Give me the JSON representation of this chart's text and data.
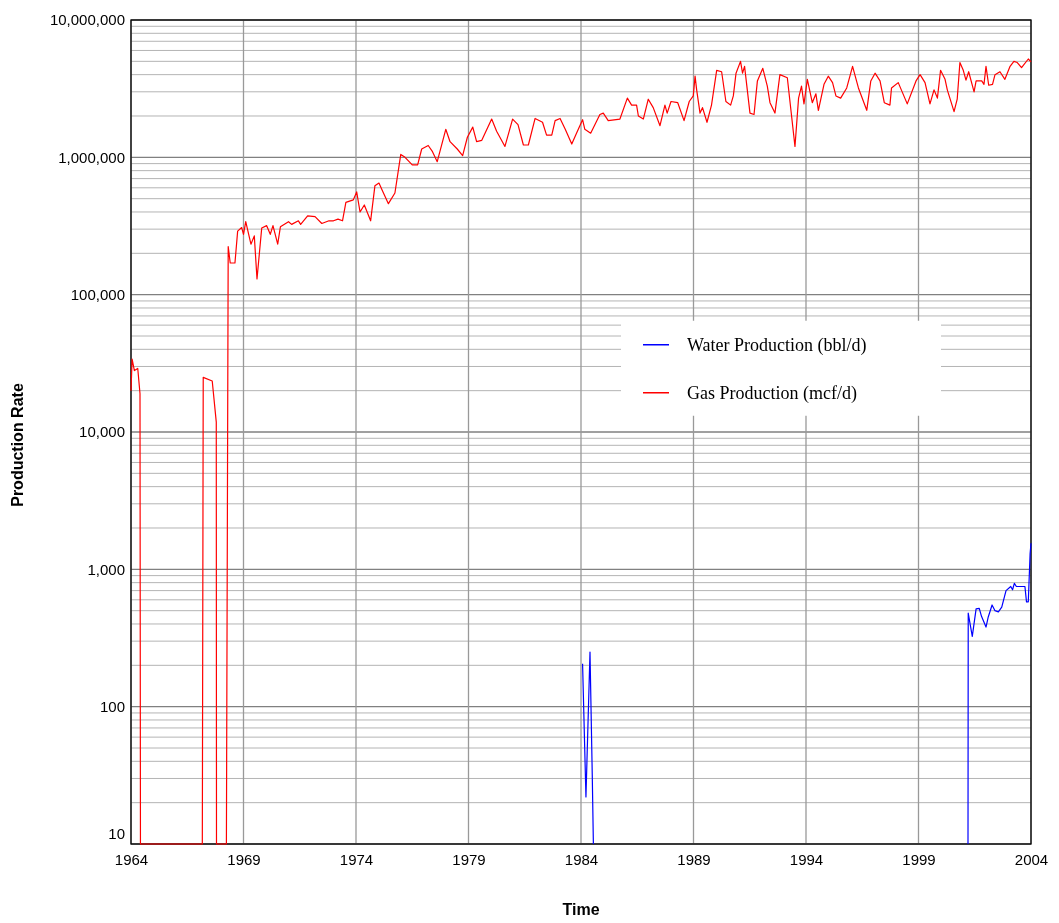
{
  "chart_data": {
    "type": "line",
    "xlabel": "Time",
    "ylabel": "Production Rate",
    "xlim": [
      1964,
      2004
    ],
    "xticks": [
      1964,
      1969,
      1974,
      1979,
      1984,
      1989,
      1994,
      1999,
      2004
    ],
    "ylim": [
      10,
      10000000
    ],
    "log": "y",
    "grid": true,
    "legend": "right",
    "marker": "none",
    "line_style": "solid",
    "yticks": [
      10,
      {
        "value": 20,
        "label": null
      },
      {
        "value": 30,
        "label": null
      },
      {
        "value": 40,
        "label": null
      },
      {
        "value": 50,
        "label": null
      },
      {
        "value": 60,
        "label": null
      },
      {
        "value": 70,
        "label": null
      },
      {
        "value": 80,
        "label": null
      },
      {
        "value": 90,
        "label": null
      },
      {
        "value": 100,
        "label": "100"
      },
      {
        "value": 200,
        "label": null
      },
      {
        "value": 300,
        "label": null
      },
      {
        "value": 400,
        "label": null
      },
      {
        "value": 500,
        "label": null
      },
      {
        "value": 600,
        "label": null
      },
      {
        "value": 700,
        "label": null
      },
      {
        "value": 800,
        "label": null
      },
      {
        "value": 900,
        "label": null
      },
      {
        "value": 1000,
        "label": "1,000"
      },
      {
        "value": 2000,
        "label": null
      },
      {
        "value": 3000,
        "label": null
      },
      {
        "value": 4000,
        "label": null
      },
      {
        "value": 5000,
        "label": null
      },
      {
        "value": 6000,
        "label": null
      },
      {
        "value": 7000,
        "label": null
      },
      {
        "value": 8000,
        "label": null
      },
      {
        "value": 9000,
        "label": null
      },
      {
        "value": 10000,
        "label": "10,000"
      },
      {
        "value": 20000,
        "label": null
      },
      {
        "value": 30000,
        "label": null
      },
      {
        "value": 40000,
        "label": null
      },
      {
        "value": 50000,
        "label": null
      },
      {
        "value": 60000,
        "label": null
      },
      {
        "value": 70000,
        "label": null
      },
      {
        "value": 80000,
        "label": null
      },
      {
        "value": 90000,
        "label": null
      },
      {
        "value": 100000,
        "label": "100,000"
      },
      {
        "value": 200000,
        "label": null
      },
      {
        "value": 300000,
        "label": null
      },
      {
        "value": 400000,
        "label": null
      },
      {
        "value": 500000,
        "label": null
      },
      {
        "value": 600000,
        "label": null
      },
      {
        "value": 700000,
        "label": null
      },
      {
        "value": 800000,
        "label": null
      },
      {
        "value": 900000,
        "label": null
      },
      {
        "value": 1000000,
        "label": "1,000,000"
      },
      {
        "value": 2000000,
        "label": null
      },
      {
        "value": 3000000,
        "label": null
      },
      {
        "value": 4000000,
        "label": null
      },
      {
        "value": 5000000,
        "label": null
      },
      {
        "value": 6000000,
        "label": null
      },
      {
        "value": 7000000,
        "label": null
      },
      {
        "value": 8000000,
        "label": null
      },
      {
        "value": 9000000,
        "label": null
      },
      {
        "value": 10000000,
        "label": "10,000,000"
      }
    ],
    "series": [
      {
        "name": "Water Production (bbl/d)",
        "color": "#0000ff",
        "x": [
          1984.07,
          1984.22,
          1984.4,
          1984.5,
          1984.55,
          1984.56,
          2001.2,
          2001.21,
          2001.39,
          2001.56,
          2001.7,
          2001.8,
          2002.0,
          2002.1,
          2002.27,
          2002.4,
          2002.55,
          2002.7,
          2002.89,
          2003.1,
          2003.18,
          2003.26,
          2003.35,
          2003.73,
          2003.8,
          2003.88,
          2003.96,
          2004.0
        ],
        "values": [
          205,
          22,
          250,
          32,
          10,
          null,
          10,
          480,
          325,
          515,
          520,
          455,
          380,
          450,
          550,
          500,
          490,
          530,
          700,
          750,
          710,
          790,
          750,
          750,
          580,
          580,
          1300,
          1550
        ]
      },
      {
        "name": "Gas Production (mcf/d)",
        "color": "#ff0000",
        "x": [
          1964.0,
          1964.05,
          1964.15,
          1964.3,
          1964.4,
          1964.42,
          1967.17,
          1967.21,
          1967.61,
          1967.79,
          1967.8,
          1968.24,
          1968.32,
          1968.41,
          1968.62,
          1968.74,
          1968.92,
          1969.0,
          1969.1,
          1969.33,
          1969.48,
          1969.6,
          1969.81,
          1970.03,
          1970.19,
          1970.31,
          1970.52,
          1970.64,
          1971.0,
          1971.14,
          1971.44,
          1971.54,
          1971.85,
          1972.18,
          1972.48,
          1972.8,
          1973.0,
          1973.2,
          1973.4,
          1973.55,
          1973.88,
          1974.03,
          1974.18,
          1974.37,
          1974.65,
          1974.84,
          1975.02,
          1975.2,
          1975.44,
          1975.73,
          1975.99,
          1976.18,
          1976.5,
          1976.74,
          1976.92,
          1977.21,
          1977.4,
          1977.61,
          1977.99,
          1978.18,
          1978.5,
          1978.74,
          1978.95,
          1979.19,
          1979.36,
          1979.59,
          1980.03,
          1980.25,
          1980.62,
          1980.96,
          1981.2,
          1981.44,
          1981.66,
          1981.96,
          1982.29,
          1982.47,
          1982.7,
          1982.85,
          1983.07,
          1983.3,
          1983.59,
          1983.8,
          1984.07,
          1984.17,
          1984.43,
          1984.84,
          1984.99,
          1985.21,
          1985.73,
          1986.06,
          1986.25,
          1986.47,
          1986.55,
          1986.77,
          1986.99,
          1987.21,
          1987.51,
          1987.73,
          1987.83,
          1988.0,
          1988.3,
          1988.58,
          1988.81,
          1988.99,
          1989.07,
          1989.14,
          1989.29,
          1989.4,
          1989.6,
          1989.8,
          1990.03,
          1990.25,
          1990.44,
          1990.65,
          1990.77,
          1990.89,
          1991.09,
          1991.18,
          1991.27,
          1991.51,
          1991.69,
          1991.84,
          1992.08,
          1992.28,
          1992.4,
          1992.62,
          1992.84,
          1993.17,
          1993.51,
          1993.67,
          1993.8,
          1993.91,
          1994.06,
          1994.28,
          1994.44,
          1994.55,
          1994.8,
          1994.99,
          1995.18,
          1995.33,
          1995.54,
          1995.81,
          1996.07,
          1996.33,
          1996.7,
          1996.88,
          1997.07,
          1997.29,
          1997.48,
          1997.73,
          1997.8,
          1998.1,
          1998.5,
          1998.89,
          1999.07,
          1999.29,
          1999.51,
          1999.69,
          1999.84,
          1999.98,
          2000.18,
          2000.28,
          2000.58,
          2000.72,
          2000.84,
          2000.99,
          2001.11,
          2001.23,
          2001.47,
          2001.56,
          2001.81,
          2001.91,
          2002.0,
          2002.12,
          2002.29,
          2002.4,
          2002.62,
          2002.84,
          2003.07,
          2003.24,
          2003.39,
          2003.58,
          2003.88,
          2004.0
        ],
        "values": [
          20000,
          34000,
          28000,
          29000,
          19000,
          10,
          10,
          25000,
          23500,
          11800,
          10,
          10,
          224000,
          170000,
          170000,
          290000,
          308000,
          275000,
          340000,
          233000,
          268000,
          130000,
          306000,
          318000,
          275000,
          318000,
          233000,
          312000,
          340000,
          325000,
          345000,
          325000,
          375000,
          370000,
          330000,
          345000,
          345000,
          355000,
          345000,
          470000,
          490000,
          560000,
          400000,
          450000,
          345000,
          620000,
          650000,
          560000,
          460000,
          550000,
          1050000,
          1000000,
          880000,
          880000,
          1150000,
          1220000,
          1100000,
          930000,
          1600000,
          1300000,
          1150000,
          1030000,
          1400000,
          1660000,
          1300000,
          1330000,
          1900000,
          1550000,
          1200000,
          1900000,
          1730000,
          1230000,
          1230000,
          1920000,
          1800000,
          1450000,
          1450000,
          1850000,
          1920000,
          1600000,
          1250000,
          1500000,
          1880000,
          1600000,
          1500000,
          2050000,
          2100000,
          1850000,
          1900000,
          2700000,
          2400000,
          2400000,
          2000000,
          1900000,
          2650000,
          2300000,
          1700000,
          2400000,
          2100000,
          2550000,
          2500000,
          1850000,
          2550000,
          2800000,
          3900000,
          3100000,
          2100000,
          2300000,
          1800000,
          2400000,
          4300000,
          4200000,
          2550000,
          2400000,
          2800000,
          4100000,
          5000000,
          4100000,
          4600000,
          2100000,
          2050000,
          3600000,
          4450000,
          3300000,
          2500000,
          2100000,
          4000000,
          3800000,
          1200000,
          2700000,
          3300000,
          2450000,
          3700000,
          2500000,
          2900000,
          2200000,
          3400000,
          3900000,
          3500000,
          2800000,
          2700000,
          3200000,
          4600000,
          3200000,
          2200000,
          3600000,
          4100000,
          3600000,
          2500000,
          2400000,
          3200000,
          3500000,
          2450000,
          3600000,
          4000000,
          3500000,
          2450000,
          3100000,
          2700000,
          4300000,
          3700000,
          3100000,
          2150000,
          2650000,
          4900000,
          4300000,
          3650000,
          4200000,
          3000000,
          3600000,
          3600000,
          3400000,
          4600000,
          3350000,
          3400000,
          4000000,
          4200000,
          3700000,
          4600000,
          5000000,
          4900000,
          4500000,
          5200000,
          4950000
        ]
      }
    ]
  }
}
